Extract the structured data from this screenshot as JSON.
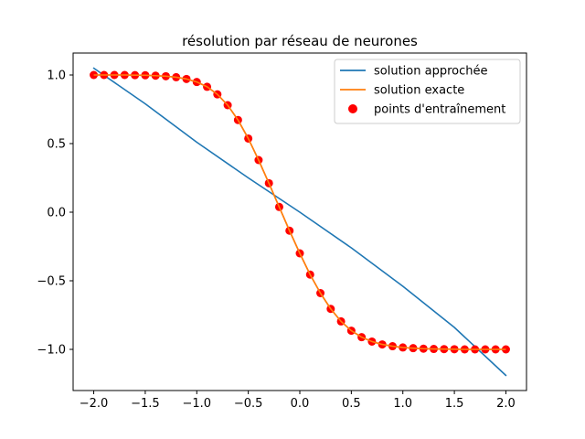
{
  "chart_data": {
    "type": "line",
    "title": "résolution par réseau de neurones",
    "xlabel": "",
    "ylabel": "",
    "xlim": [
      -2.2,
      2.2
    ],
    "ylim": [
      -1.3,
      1.16
    ],
    "xticks": [
      -2.0,
      -1.5,
      -1.0,
      -0.5,
      0.0,
      0.5,
      1.0,
      1.5,
      2.0
    ],
    "yticks": [
      -1.0,
      -0.5,
      0.0,
      0.5,
      1.0
    ],
    "xtick_labels": [
      "−2.0",
      "−1.5",
      "−1.0",
      "−0.5",
      "0.0",
      "0.5",
      "1.0",
      "1.5",
      "2.0"
    ],
    "ytick_labels": [
      "−1.0",
      "−0.5",
      "0.0",
      "0.5",
      "1.0"
    ],
    "grid": false,
    "legend_position": "top-right",
    "series": [
      {
        "name": "solution approchée",
        "kind": "line",
        "color": "#1f77b4",
        "x": [
          -2.0,
          -1.5,
          -1.0,
          -0.5,
          0.0,
          0.5,
          1.0,
          1.5,
          2.0
        ],
        "y": [
          1.05,
          0.79,
          0.51,
          0.25,
          0.0,
          -0.26,
          -0.54,
          -0.84,
          -1.19
        ]
      },
      {
        "name": "solution exacte",
        "kind": "line",
        "color": "#ff7f0e",
        "x": [
          -2.0,
          -1.9,
          -1.8,
          -1.7,
          -1.6,
          -1.5,
          -1.4,
          -1.3,
          -1.2,
          -1.1,
          -1.0,
          -0.9,
          -0.8,
          -0.7,
          -0.6,
          -0.5,
          -0.4,
          -0.3,
          -0.2,
          -0.1,
          0.0,
          0.1,
          0.2,
          0.3,
          0.4,
          0.5,
          0.6,
          0.7,
          0.8,
          0.9,
          1.0,
          1.1,
          1.2,
          1.3,
          1.4,
          1.5,
          1.6,
          1.7,
          1.8,
          1.9,
          2.0
        ],
        "y": [
          1.0,
          1.0,
          1.0,
          1.0,
          0.999,
          0.998,
          0.995,
          0.991,
          0.984,
          0.971,
          0.949,
          0.914,
          0.859,
          0.78,
          0.672,
          0.537,
          0.38,
          0.211,
          0.038,
          -0.135,
          -0.3,
          -0.455,
          -0.59,
          -0.705,
          -0.796,
          -0.864,
          -0.911,
          -0.943,
          -0.964,
          -0.977,
          -0.986,
          -0.991,
          -0.995,
          -0.997,
          -0.998,
          -0.999,
          -1.0,
          -1.0,
          -1.0,
          -1.0,
          -1.0
        ]
      },
      {
        "name": "points d'entraînement",
        "kind": "scatter",
        "color": "#ff0000",
        "x": [
          -2.0,
          -1.9,
          -1.8,
          -1.7,
          -1.6,
          -1.5,
          -1.4,
          -1.3,
          -1.2,
          -1.1,
          -1.0,
          -0.9,
          -0.8,
          -0.7,
          -0.6,
          -0.5,
          -0.4,
          -0.3,
          -0.2,
          -0.1,
          0.0,
          0.1,
          0.2,
          0.3,
          0.4,
          0.5,
          0.6,
          0.7,
          0.8,
          0.9,
          1.0,
          1.1,
          1.2,
          1.3,
          1.4,
          1.5,
          1.6,
          1.7,
          1.8,
          1.9,
          2.0
        ],
        "y": [
          1.0,
          1.0,
          1.0,
          1.0,
          0.999,
          0.998,
          0.995,
          0.991,
          0.984,
          0.971,
          0.949,
          0.914,
          0.859,
          0.78,
          0.672,
          0.537,
          0.38,
          0.211,
          0.038,
          -0.135,
          -0.3,
          -0.455,
          -0.59,
          -0.705,
          -0.796,
          -0.864,
          -0.911,
          -0.943,
          -0.964,
          -0.977,
          -0.986,
          -0.991,
          -0.995,
          -0.997,
          -0.998,
          -0.999,
          -1.0,
          -1.0,
          -1.0,
          -1.0,
          -1.0
        ]
      }
    ]
  }
}
